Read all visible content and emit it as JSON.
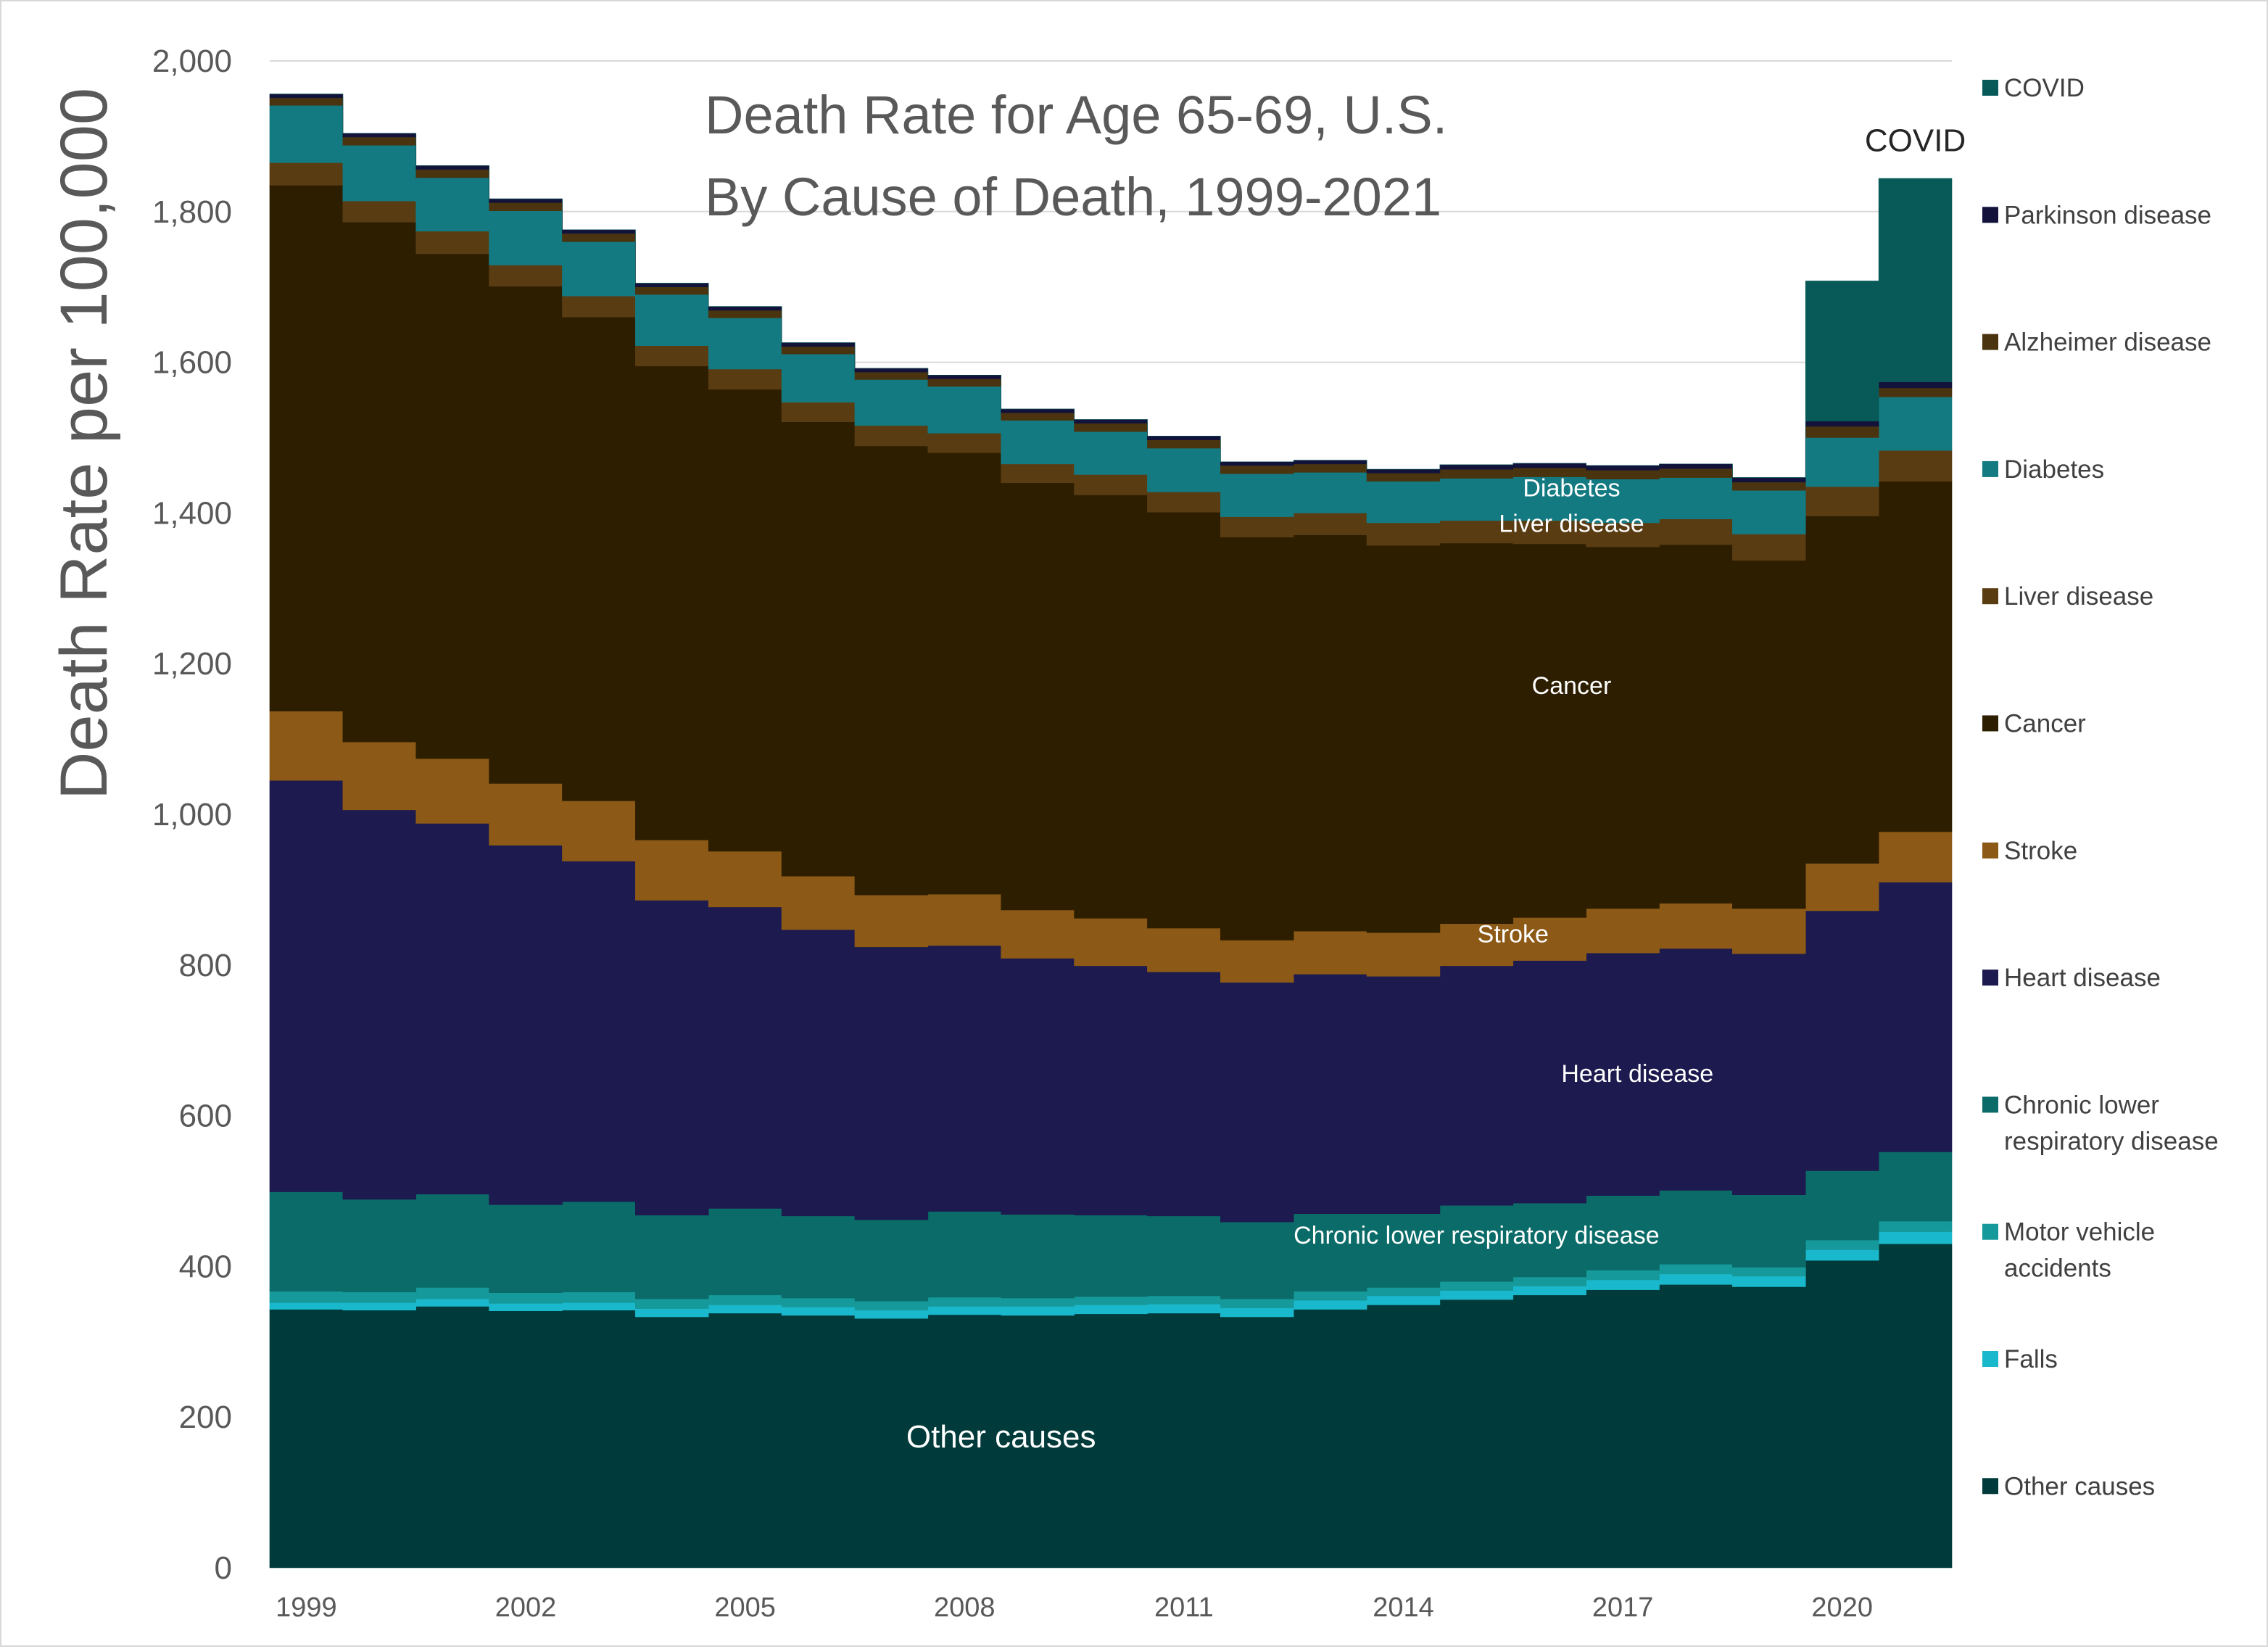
{
  "chart_data": {
    "type": "area",
    "title": "Death Rate for Age 65-69, U.S.",
    "subtitle": "By Cause of Death, 1999-2021",
    "ylabel": "Death Rate per 100,000",
    "xlabel": "",
    "ylim": [
      0,
      2000
    ],
    "y_ticks": [
      "0",
      "200",
      "400",
      "600",
      "800",
      "1,000",
      "1,200",
      "1,400",
      "1,600",
      "1,800",
      "2,000"
    ],
    "x": [
      1999,
      2000,
      2001,
      2002,
      2003,
      2004,
      2005,
      2006,
      2007,
      2008,
      2009,
      2010,
      2011,
      2012,
      2013,
      2014,
      2015,
      2016,
      2017,
      2018,
      2019,
      2020,
      2021
    ],
    "x_tick_labels": [
      "1999",
      "2002",
      "2005",
      "2008",
      "2011",
      "2014",
      "2017",
      "2020"
    ],
    "grid": true,
    "legend_position": "right",
    "series": [
      {
        "name": "Other causes",
        "color": "#003a3a",
        "values": [
          343,
          342,
          347,
          341,
          342,
          333,
          338,
          335,
          331,
          336,
          335,
          337,
          338,
          333,
          343,
          349,
          356,
          362,
          369,
          376,
          373,
          408,
          430
        ]
      },
      {
        "name": "Falls",
        "color": "#1ab8cc",
        "values": [
          9,
          10,
          10,
          10,
          10,
          11,
          11,
          11,
          11,
          11,
          12,
          12,
          12,
          12,
          12,
          12,
          12,
          12,
          13,
          14,
          14,
          14,
          16
        ]
      },
      {
        "name": "Motor vehicle accidents",
        "color": "#16999b",
        "values": [
          15,
          14,
          15,
          14,
          14,
          13,
          13,
          12,
          12,
          12,
          11,
          11,
          11,
          12,
          12,
          11,
          12,
          12,
          13,
          13,
          12,
          13,
          14
        ]
      },
      {
        "name": "Chronic lower respiratory disease",
        "color": "#0b6b68",
        "values": [
          132,
          123,
          124,
          117,
          120,
          111,
          115,
          109,
          108,
          114,
          111,
          108,
          106,
          102,
          103,
          98,
          101,
          98,
          99,
          98,
          96,
          92,
          92
        ]
      },
      {
        "name": "Heart disease",
        "color": "#1c1a4e",
        "values": [
          546,
          517,
          492,
          477,
          452,
          418,
          400,
          380,
          362,
          353,
          340,
          331,
          324,
          318,
          318,
          315,
          318,
          322,
          322,
          321,
          320,
          345,
          358
        ]
      },
      {
        "name": "Stroke",
        "color": "#8c5a16",
        "values": [
          92,
          90,
          86,
          82,
          80,
          80,
          74,
          71,
          69,
          68,
          64,
          63,
          58,
          56,
          57,
          58,
          56,
          57,
          59,
          60,
          60,
          63,
          67
        ]
      },
      {
        "name": "Cancer",
        "color": "#2e1e00",
        "values": [
          698,
          690,
          670,
          660,
          642,
          629,
          613,
          603,
          596,
          586,
          567,
          562,
          552,
          535,
          526,
          514,
          505,
          496,
          480,
          476,
          462,
          461,
          465
        ]
      },
      {
        "name": "Liver disease",
        "color": "#5a3c12",
        "values": [
          30,
          28,
          30,
          28,
          28,
          27,
          27,
          26,
          27,
          26,
          25,
          27,
          27,
          27,
          29,
          30,
          30,
          31,
          32,
          34,
          35,
          39,
          41
        ]
      },
      {
        "name": "Diabetes",
        "color": "#137a82",
        "values": [
          76,
          74,
          71,
          72,
          72,
          68,
          68,
          64,
          61,
          62,
          58,
          57,
          58,
          57,
          54,
          55,
          56,
          58,
          58,
          55,
          58,
          65,
          71
        ]
      },
      {
        "name": "Alzheimer disease",
        "color": "#4a3410",
        "values": [
          10,
          11,
          11,
          11,
          11,
          10,
          10,
          10,
          10,
          10,
          10,
          11,
          11,
          11,
          11,
          11,
          12,
          12,
          12,
          12,
          11,
          15,
          12
        ]
      },
      {
        "name": "Parkinson disease",
        "color": "#12123a",
        "values": [
          5,
          5,
          5,
          5,
          5,
          5,
          5,
          5,
          5,
          5,
          5,
          5,
          5,
          5,
          5,
          5,
          6,
          6,
          6,
          6,
          6,
          7,
          8
        ]
      },
      {
        "name": "COVID",
        "color": "#085a58",
        "values": [
          0,
          0,
          0,
          0,
          0,
          0,
          0,
          0,
          0,
          0,
          0,
          0,
          0,
          0,
          0,
          0,
          0,
          0,
          0,
          0,
          0,
          186,
          270
        ]
      }
    ],
    "annotations": [
      {
        "text": "Other causes",
        "year": 2008.5,
        "value": 160,
        "size": 44
      },
      {
        "text": "Chronic lower respiratory disease",
        "year": 2015,
        "value": 430,
        "size": 34
      },
      {
        "text": "Heart disease",
        "year": 2017.2,
        "value": 645,
        "size": 34
      },
      {
        "text": "Stroke",
        "year": 2015.5,
        "value": 830,
        "size": 34
      },
      {
        "text": "Cancer",
        "year": 2016.3,
        "value": 1160,
        "size": 34
      },
      {
        "text": "Liver disease",
        "year": 2016.3,
        "value": 1375,
        "size": 34
      },
      {
        "text": "Diabetes",
        "year": 2016.3,
        "value": 1422,
        "size": 34
      },
      {
        "text": "COVID",
        "year": 2021,
        "value": 1880,
        "size": 44,
        "dark": true
      }
    ]
  }
}
